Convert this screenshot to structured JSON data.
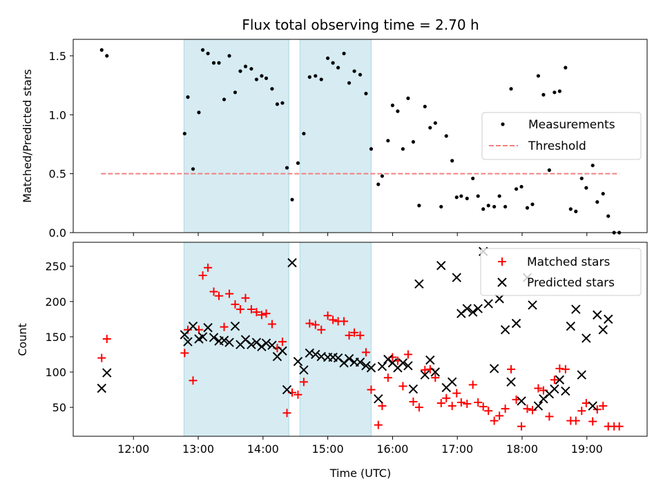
{
  "chart_data": [
    {
      "type": "scatter",
      "title": "Flux total observing time = 2.70 h",
      "xlabel": "",
      "ylabel": "Matched/Predicted stars",
      "xlim": [
        11.07,
        19.93
      ],
      "ylim": [
        0,
        1.64
      ],
      "xticks": [
        12,
        13,
        14,
        15,
        16,
        17,
        18,
        19
      ],
      "yticks": [
        0.0,
        0.5,
        1.0,
        1.5
      ],
      "ytick_labels": [
        "0.0",
        "0.5",
        "1.0",
        "1.5"
      ],
      "shaded_intervals": [
        [
          12.78,
          14.4
        ],
        [
          14.57,
          15.67
        ]
      ],
      "legend": {
        "position": "center-right",
        "entries": [
          "Measurements",
          "Threshold"
        ]
      },
      "threshold": {
        "name": "Threshold",
        "y": 0.5,
        "x": [
          11.5,
          19.5
        ],
        "color": "#f08080"
      },
      "series": [
        {
          "name": "Measurements",
          "marker": "dot",
          "color": "#000000",
          "points": [
            [
              11.51,
              1.55
            ],
            [
              11.59,
              1.5
            ],
            [
              12.79,
              0.84
            ],
            [
              12.84,
              1.15
            ],
            [
              12.92,
              0.54
            ],
            [
              13.01,
              1.02
            ],
            [
              13.07,
              1.55
            ],
            [
              13.15,
              1.52
            ],
            [
              13.24,
              1.44
            ],
            [
              13.32,
              1.44
            ],
            [
              13.4,
              1.13
            ],
            [
              13.48,
              1.5
            ],
            [
              13.57,
              1.19
            ],
            [
              13.65,
              1.37
            ],
            [
              13.73,
              1.41
            ],
            [
              13.82,
              1.39
            ],
            [
              13.9,
              1.3
            ],
            [
              13.98,
              1.33
            ],
            [
              14.05,
              1.31
            ],
            [
              14.14,
              1.22
            ],
            [
              14.22,
              1.09
            ],
            [
              14.3,
              1.1
            ],
            [
              14.37,
              0.55
            ],
            [
              14.45,
              0.28
            ],
            [
              14.54,
              0.59
            ],
            [
              14.63,
              0.84
            ],
            [
              14.72,
              1.32
            ],
            [
              14.81,
              1.33
            ],
            [
              14.9,
              1.3
            ],
            [
              15.0,
              1.48
            ],
            [
              15.08,
              1.44
            ],
            [
              15.16,
              1.4
            ],
            [
              15.25,
              1.52
            ],
            [
              15.33,
              1.27
            ],
            [
              15.41,
              1.37
            ],
            [
              15.5,
              1.34
            ],
            [
              15.59,
              1.18
            ],
            [
              15.67,
              0.71
            ],
            [
              15.78,
              0.41
            ],
            [
              15.84,
              0.48
            ],
            [
              15.93,
              0.78
            ],
            [
              16.0,
              1.08
            ],
            [
              16.08,
              1.03
            ],
            [
              16.16,
              0.71
            ],
            [
              16.24,
              1.14
            ],
            [
              16.32,
              0.77
            ],
            [
              16.41,
              0.23
            ],
            [
              16.5,
              1.07
            ],
            [
              16.58,
              0.89
            ],
            [
              16.66,
              0.93
            ],
            [
              16.75,
              0.22
            ],
            [
              16.83,
              0.82
            ],
            [
              16.92,
              0.61
            ],
            [
              16.99,
              0.3
            ],
            [
              17.06,
              0.31
            ],
            [
              17.15,
              0.29
            ],
            [
              17.24,
              0.46
            ],
            [
              17.32,
              0.31
            ],
            [
              17.4,
              0.2
            ],
            [
              17.48,
              0.23
            ],
            [
              17.57,
              0.22
            ],
            [
              17.65,
              0.31
            ],
            [
              17.74,
              0.22
            ],
            [
              17.83,
              1.22
            ],
            [
              17.91,
              0.37
            ],
            [
              17.99,
              0.39
            ],
            [
              18.08,
              0.21
            ],
            [
              18.16,
              0.24
            ],
            [
              18.25,
              1.33
            ],
            [
              18.33,
              1.17
            ],
            [
              18.42,
              0.53
            ],
            [
              18.5,
              1.19
            ],
            [
              18.58,
              1.2
            ],
            [
              18.67,
              1.4
            ],
            [
              18.75,
              0.2
            ],
            [
              18.83,
              0.18
            ],
            [
              18.92,
              0.46
            ],
            [
              18.99,
              0.38
            ],
            [
              19.09,
              0.57
            ],
            [
              19.16,
              0.26
            ],
            [
              19.25,
              0.33
            ],
            [
              19.33,
              0.14
            ],
            [
              19.42,
              0.0
            ],
            [
              19.5,
              0.0
            ]
          ]
        }
      ]
    },
    {
      "type": "scatter",
      "title": "",
      "xlabel": "Time (UTC)",
      "ylabel": "Count",
      "xlim": [
        11.07,
        19.93
      ],
      "ylim": [
        9,
        284
      ],
      "xticks": [
        12,
        13,
        14,
        15,
        16,
        17,
        18,
        19
      ],
      "xtick_labels": [
        "12:00",
        "13:00",
        "14:00",
        "15:00",
        "16:00",
        "17:00",
        "18:00",
        "19:00"
      ],
      "yticks": [
        50,
        100,
        150,
        200,
        250
      ],
      "shaded_intervals": [
        [
          12.78,
          14.4
        ],
        [
          14.57,
          15.67
        ]
      ],
      "legend": {
        "position": "top-right",
        "entries": [
          "Matched stars",
          "Predicted stars"
        ]
      },
      "series": [
        {
          "name": "Matched stars",
          "marker": "plus",
          "color": "#ff0000",
          "points": [
            [
              11.51,
              120
            ],
            [
              11.59,
              147
            ],
            [
              12.79,
              127
            ],
            [
              12.84,
              160
            ],
            [
              12.92,
              88
            ],
            [
              13.01,
              160
            ],
            [
              13.07,
              237
            ],
            [
              13.15,
              248
            ],
            [
              13.24,
              214
            ],
            [
              13.32,
              208
            ],
            [
              13.4,
              164
            ],
            [
              13.48,
              211
            ],
            [
              13.57,
              196
            ],
            [
              13.65,
              189
            ],
            [
              13.73,
              205
            ],
            [
              13.82,
              189
            ],
            [
              13.9,
              185
            ],
            [
              13.98,
              181
            ],
            [
              14.05,
              183
            ],
            [
              14.14,
              168
            ],
            [
              14.22,
              134
            ],
            [
              14.3,
              143
            ],
            [
              14.37,
              42
            ],
            [
              14.45,
              71
            ],
            [
              14.54,
              68
            ],
            [
              14.63,
              86
            ],
            [
              14.72,
              169
            ],
            [
              14.81,
              167
            ],
            [
              14.9,
              160
            ],
            [
              15.0,
              180
            ],
            [
              15.08,
              174
            ],
            [
              15.16,
              172
            ],
            [
              15.25,
              172
            ],
            [
              15.33,
              152
            ],
            [
              15.41,
              156
            ],
            [
              15.5,
              152
            ],
            [
              15.59,
              128
            ],
            [
              15.67,
              75
            ],
            [
              15.78,
              25
            ],
            [
              15.84,
              52
            ],
            [
              15.93,
              92
            ],
            [
              16.0,
              121
            ],
            [
              16.08,
              116
            ],
            [
              16.16,
              80
            ],
            [
              16.24,
              125
            ],
            [
              16.32,
              58
            ],
            [
              16.41,
              50
            ],
            [
              16.5,
              103
            ],
            [
              16.58,
              104
            ],
            [
              16.66,
              92
            ],
            [
              16.75,
              56
            ],
            [
              16.83,
              63
            ],
            [
              16.92,
              52
            ],
            [
              16.99,
              70
            ],
            [
              17.06,
              57
            ],
            [
              17.15,
              55
            ],
            [
              17.24,
              82
            ],
            [
              17.32,
              57
            ],
            [
              17.4,
              51
            ],
            [
              17.48,
              45
            ],
            [
              17.57,
              31
            ],
            [
              17.65,
              38
            ],
            [
              17.74,
              48
            ],
            [
              17.83,
              104
            ],
            [
              17.91,
              61
            ],
            [
              17.99,
              23
            ],
            [
              18.08,
              48
            ],
            [
              18.16,
              46
            ],
            [
              18.25,
              77
            ],
            [
              18.33,
              74
            ],
            [
              18.42,
              37
            ],
            [
              18.5,
              89
            ],
            [
              18.58,
              105
            ],
            [
              18.67,
              104
            ],
            [
              18.75,
              31
            ],
            [
              18.83,
              31
            ],
            [
              18.92,
              45
            ],
            [
              18.99,
              56
            ],
            [
              19.09,
              30
            ],
            [
              19.16,
              47
            ],
            [
              19.25,
              52
            ],
            [
              19.33,
              23
            ],
            [
              19.42,
              23
            ],
            [
              19.5,
              23
            ]
          ]
        },
        {
          "name": "Predicted stars",
          "marker": "x",
          "color": "#000000",
          "points": [
            [
              11.51,
              77
            ],
            [
              11.59,
              99
            ],
            [
              12.79,
              153
            ],
            [
              12.84,
              143
            ],
            [
              12.92,
              165
            ],
            [
              13.01,
              147
            ],
            [
              13.07,
              150
            ],
            [
              13.15,
              163
            ],
            [
              13.24,
              149
            ],
            [
              13.32,
              144
            ],
            [
              13.4,
              145
            ],
            [
              13.48,
              142
            ],
            [
              13.57,
              165
            ],
            [
              13.65,
              139
            ],
            [
              13.73,
              146
            ],
            [
              13.82,
              139
            ],
            [
              13.9,
              142
            ],
            [
              13.98,
              136
            ],
            [
              14.05,
              141
            ],
            [
              14.14,
              138
            ],
            [
              14.22,
              122
            ],
            [
              14.3,
              130
            ],
            [
              14.37,
              75
            ],
            [
              14.45,
              255
            ],
            [
              14.54,
              115
            ],
            [
              14.63,
              103
            ],
            [
              14.72,
              127
            ],
            [
              14.81,
              125
            ],
            [
              14.9,
              122
            ],
            [
              15.0,
              121
            ],
            [
              15.08,
              121
            ],
            [
              15.16,
              120
            ],
            [
              15.25,
              113
            ],
            [
              15.33,
              119
            ],
            [
              15.41,
              114
            ],
            [
              15.5,
              114
            ],
            [
              15.59,
              109
            ],
            [
              15.67,
              106
            ],
            [
              15.78,
              62
            ],
            [
              15.84,
              108
            ],
            [
              15.93,
              118
            ],
            [
              16.0,
              113
            ],
            [
              16.08,
              106
            ],
            [
              16.16,
              113
            ],
            [
              16.24,
              109
            ],
            [
              16.32,
              76
            ],
            [
              16.41,
              225
            ],
            [
              16.5,
              96
            ],
            [
              16.58,
              117
            ],
            [
              16.66,
              100
            ],
            [
              16.75,
              251
            ],
            [
              16.83,
              78
            ],
            [
              16.92,
              86
            ],
            [
              16.99,
              234
            ],
            [
              17.06,
              183
            ],
            [
              17.15,
              190
            ],
            [
              17.24,
              185
            ],
            [
              17.32,
              190
            ],
            [
              17.4,
              271
            ],
            [
              17.48,
              197
            ],
            [
              17.57,
              105
            ],
            [
              17.65,
              204
            ],
            [
              17.74,
              160
            ],
            [
              17.83,
              86
            ],
            [
              17.91,
              169
            ],
            [
              17.99,
              59
            ],
            [
              18.08,
              234
            ],
            [
              18.16,
              195
            ],
            [
              18.25,
              52
            ],
            [
              18.33,
              62
            ],
            [
              18.42,
              69
            ],
            [
              18.5,
              76
            ],
            [
              18.58,
              89
            ],
            [
              18.67,
              73
            ],
            [
              18.75,
              165
            ],
            [
              18.83,
              189
            ],
            [
              18.92,
              96
            ],
            [
              18.99,
              148
            ],
            [
              19.09,
              52
            ],
            [
              19.16,
              181
            ],
            [
              19.25,
              160
            ],
            [
              19.33,
              175
            ]
          ]
        }
      ]
    }
  ]
}
